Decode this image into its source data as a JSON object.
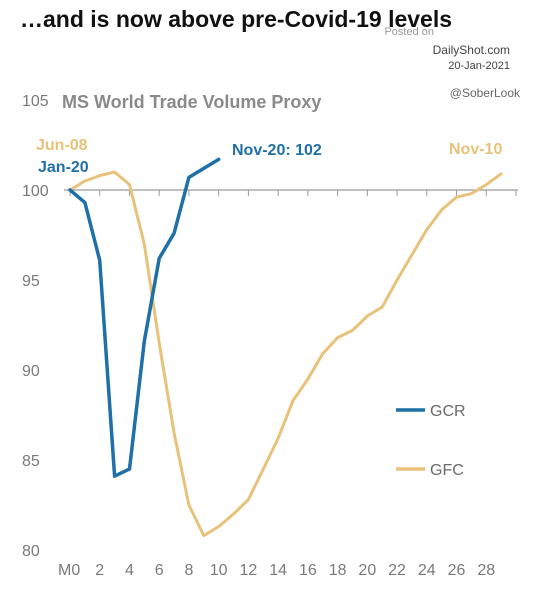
{
  "headline": "…and is now above pre-Covid-19 levels",
  "watermark": {
    "posted": "Posted on",
    "site": "DailyShot.com",
    "date": "20-Jan-2021",
    "handle": "@SoberLook"
  },
  "chart_data": {
    "type": "line",
    "title": "MS World Trade Volume Proxy",
    "xlabel": "",
    "ylabel": "",
    "xlim": [
      0,
      30
    ],
    "ylim": [
      80,
      105
    ],
    "x_ticks": [
      {
        "value": 0,
        "label": "M0"
      },
      {
        "value": 2,
        "label": "2"
      },
      {
        "value": 4,
        "label": "4"
      },
      {
        "value": 6,
        "label": "6"
      },
      {
        "value": 8,
        "label": "8"
      },
      {
        "value": 10,
        "label": "10"
      },
      {
        "value": 12,
        "label": "12"
      },
      {
        "value": 14,
        "label": "14"
      },
      {
        "value": 16,
        "label": "16"
      },
      {
        "value": 18,
        "label": "18"
      },
      {
        "value": 20,
        "label": "20"
      },
      {
        "value": 22,
        "label": "22"
      },
      {
        "value": 24,
        "label": "24"
      },
      {
        "value": 26,
        "label": "26"
      },
      {
        "value": 28,
        "label": "28"
      }
    ],
    "y_ticks": [
      {
        "value": 80,
        "label": "80"
      },
      {
        "value": 85,
        "label": "85"
      },
      {
        "value": 90,
        "label": "90"
      },
      {
        "value": 95,
        "label": "95"
      },
      {
        "value": 100,
        "label": "100"
      },
      {
        "value": 105,
        "label": "105"
      }
    ],
    "reference_line": 100,
    "series": [
      {
        "name": "GCR",
        "color": "#1f6fa8",
        "start_label": "Jan-20",
        "end_label": "Nov-20: 102",
        "x": [
          0,
          1,
          2,
          3,
          4,
          5,
          6,
          7,
          8,
          9,
          10
        ],
        "y": [
          100,
          99.3,
          96.1,
          84.1,
          84.5,
          91.6,
          96.2,
          97.6,
          100.7,
          101.2,
          101.7
        ]
      },
      {
        "name": "GFC",
        "color": "#e8c27a",
        "start_label": "Jun-08",
        "end_label": "Nov-10",
        "x": [
          0,
          1,
          2,
          3,
          4,
          5,
          6,
          7,
          8,
          9,
          10,
          11,
          12,
          13,
          14,
          15,
          16,
          17,
          18,
          19,
          20,
          21,
          22,
          23,
          24,
          25,
          26,
          27,
          28,
          29
        ],
        "y": [
          100,
          100.5,
          100.8,
          101.0,
          100.3,
          97.0,
          91.5,
          86.5,
          82.5,
          80.8,
          81.3,
          82.0,
          82.8,
          84.5,
          86.2,
          88.3,
          89.5,
          90.9,
          91.8,
          92.2,
          93.0,
          93.5,
          95.0,
          96.4,
          97.8,
          98.9,
          99.6,
          99.8,
          100.3,
          100.9
        ]
      }
    ],
    "legend": [
      "GCR",
      "GFC"
    ],
    "legend_position": "right"
  }
}
